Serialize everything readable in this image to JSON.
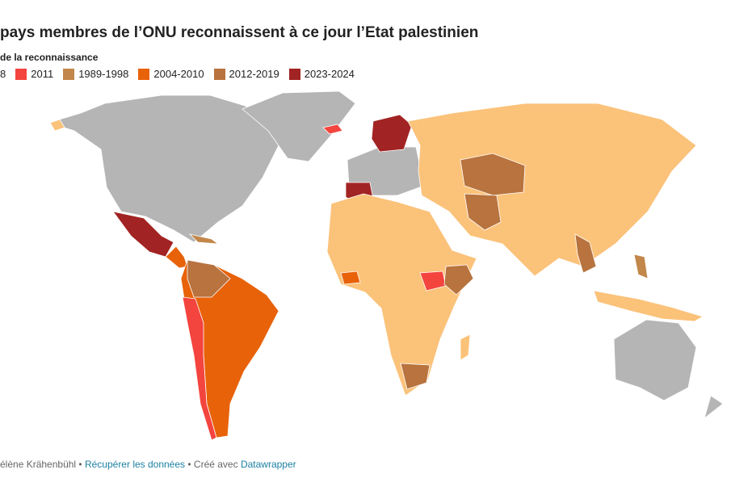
{
  "title": "pays membres de l’ONU reconnaissent à ce jour l’Etat palestinien",
  "legend": {
    "title": "de la reconnaissance",
    "items": [
      {
        "label": "8",
        "color": "#fbc27a"
      },
      {
        "label": "2011",
        "color": "#f4443e"
      },
      {
        "label": "1989-1998",
        "color": "#c2874a"
      },
      {
        "label": "2004-2010",
        "color": "#e8620a"
      },
      {
        "label": "2012-2019",
        "color": "#b8733e"
      },
      {
        "label": "2023-2024",
        "color": "#a22323"
      }
    ]
  },
  "colors": {
    "no_recognition": "#b5b5b5"
  },
  "footer": {
    "author": "élène Krähenbühl",
    "sep1": " • ",
    "data_link": "Récupérer les données",
    "sep2": " • Créé avec ",
    "tool_link": "Datawrapper"
  }
}
